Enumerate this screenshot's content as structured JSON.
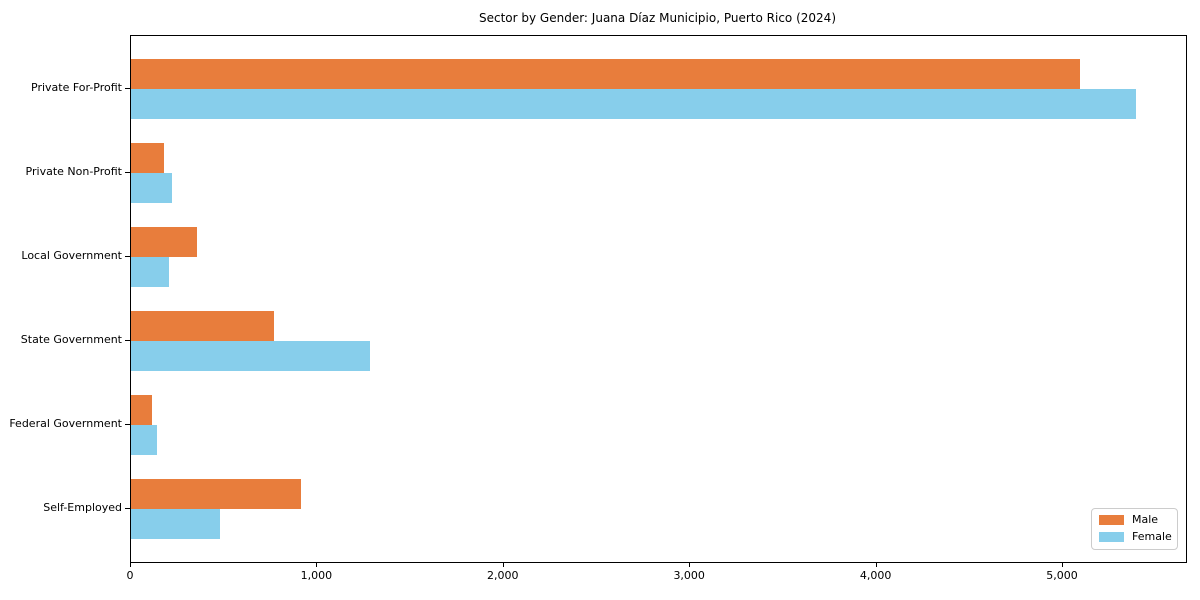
{
  "title": "Sector by Gender: Juana Díaz Municipio, Puerto Rico (2024)",
  "colors": {
    "male": "#E87D3C",
    "female": "#87CEEB",
    "axis": "#000000",
    "legend_border": "#cccccc",
    "background": "#ffffff"
  },
  "legend": {
    "position": "lower right",
    "entries": [
      {
        "label": "Male",
        "color": "#E87D3C"
      },
      {
        "label": "Female",
        "color": "#87CEEB"
      }
    ]
  },
  "chart_data": {
    "type": "bar",
    "orientation": "horizontal",
    "title": "Sector by Gender: Juana Díaz Municipio, Puerto Rico (2024)",
    "categories": [
      "Private For-Profit",
      "Private Non-Profit",
      "Local Government",
      "State Government",
      "Federal Government",
      "Self-Employed"
    ],
    "series": [
      {
        "name": "Male",
        "color": "#E87D3C",
        "values": [
          5090,
          175,
          355,
          765,
          115,
          910
        ]
      },
      {
        "name": "Female",
        "color": "#87CEEB",
        "values": [
          5390,
          220,
          205,
          1280,
          140,
          478
        ]
      }
    ],
    "xlabel": "",
    "ylabel": "",
    "xlim": [
      0,
      5660
    ],
    "x_ticks": [
      0,
      1000,
      2000,
      3000,
      4000,
      5000
    ],
    "x_tick_labels": [
      "0",
      "1,000",
      "2,000",
      "3,000",
      "4,000",
      "5,000"
    ],
    "grid": false,
    "legend_position": "lower right"
  }
}
